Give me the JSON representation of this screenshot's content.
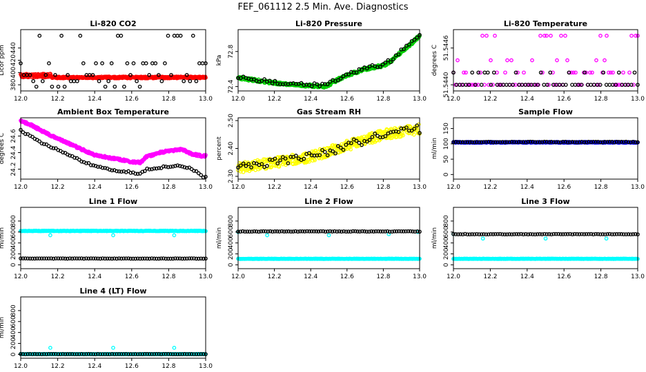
{
  "figure": {
    "title": "FEF_061112  2.5 Min. Ave. Diagnostics"
  },
  "chart_data": [
    {
      "type": "scatter",
      "title": "Li-820 CO2",
      "ylabel": "Licor ppm",
      "xlim": [
        12.0,
        13.0
      ],
      "ylim": [
        370,
        470
      ],
      "xticks": [
        "12.0",
        "12.2",
        "12.4",
        "12.6",
        "12.8",
        "13.0"
      ],
      "yticks": [
        "380",
        "400",
        "420",
        "440"
      ],
      "series": [
        {
          "name": "red",
          "color": "#ff0000",
          "model": "noisy",
          "y0": 392,
          "y1": 392,
          "amp": 1.5,
          "n": 500,
          "bump": [
            12.0,
            12.17,
            395
          ]
        },
        {
          "name": "black",
          "color": "#000000",
          "model": "levels",
          "levels": [
            377,
            386,
            396,
            415,
            460
          ],
          "n": 60
        }
      ]
    },
    {
      "type": "scatter",
      "title": "Li-820 Pressure",
      "ylabel": "kPa",
      "xlim": [
        12.0,
        13.0
      ],
      "ylim": [
        72.35,
        73.05
      ],
      "xticks": [
        "12.0",
        "12.2",
        "12.4",
        "12.6",
        "12.8",
        "13.0"
      ],
      "yticks": [
        "72.4",
        "72.8"
      ],
      "series": [
        {
          "name": "green",
          "color": "#00cc00",
          "model": "pts",
          "n": 400,
          "amp": 0.015,
          "pts": [
            [
              12.0,
              72.5
            ],
            [
              12.1,
              72.47
            ],
            [
              12.2,
              72.44
            ],
            [
              12.3,
              72.42
            ],
            [
              12.4,
              72.41
            ],
            [
              12.48,
              72.4
            ],
            [
              12.55,
              72.48
            ],
            [
              12.6,
              72.53
            ],
            [
              12.7,
              72.6
            ],
            [
              12.8,
              72.64
            ],
            [
              12.85,
              72.7
            ],
            [
              12.9,
              72.8
            ],
            [
              12.95,
              72.88
            ],
            [
              13.0,
              72.98
            ]
          ]
        },
        {
          "name": "black",
          "color": "#000000",
          "model": "pts",
          "n": 70,
          "amp": 0.02,
          "pts": [
            [
              12.0,
              72.51
            ],
            [
              12.1,
              72.48
            ],
            [
              12.2,
              72.45
            ],
            [
              12.3,
              72.43
            ],
            [
              12.4,
              72.42
            ],
            [
              12.48,
              72.41
            ],
            [
              12.55,
              72.49
            ],
            [
              12.6,
              72.54
            ],
            [
              12.7,
              72.61
            ],
            [
              12.8,
              72.65
            ],
            [
              12.85,
              72.71
            ],
            [
              12.9,
              72.81
            ],
            [
              12.95,
              72.89
            ],
            [
              13.0,
              72.99
            ]
          ]
        }
      ]
    },
    {
      "type": "scatter",
      "title": "Li-820 Temperature",
      "ylabel": "degrees C",
      "xlim": [
        12.0,
        13.0
      ],
      "ylim": [
        51.5439,
        51.5449
      ],
      "xticks": [
        "12.0",
        "12.2",
        "12.4",
        "12.6",
        "12.8",
        "13.0"
      ],
      "yticks": [
        "51.5440",
        "51.5446"
      ],
      "series": [
        {
          "name": "magenta",
          "color": "#ff00ff",
          "model": "levels",
          "levels": [
            51.544,
            51.544,
            51.544,
            51.544,
            51.5442,
            51.5442,
            51.5444,
            51.5448
          ],
          "n": 90
        },
        {
          "name": "black",
          "color": "#000000",
          "model": "levels",
          "levels": [
            51.544,
            51.544,
            51.544,
            51.544,
            51.5442
          ],
          "n": 60
        }
      ]
    },
    {
      "type": "scatter",
      "title": "Ambient Box Temperature",
      "ylabel": "degrees C",
      "xlim": [
        12.0,
        13.0
      ],
      "ylim": [
        24.08,
        24.82
      ],
      "xticks": [
        "12.0",
        "12.2",
        "12.4",
        "12.6",
        "12.8",
        "13.0"
      ],
      "yticks": [
        "24.2",
        "24.4",
        "24.6"
      ],
      "series": [
        {
          "name": "magenta",
          "color": "#ff00ff",
          "model": "pts",
          "n": 450,
          "amp": 0.012,
          "pts": [
            [
              12.0,
              24.78
            ],
            [
              12.05,
              24.74
            ],
            [
              12.1,
              24.68
            ],
            [
              12.15,
              24.62
            ],
            [
              12.2,
              24.57
            ],
            [
              12.3,
              24.47
            ],
            [
              12.35,
              24.42
            ],
            [
              12.4,
              24.37
            ],
            [
              12.5,
              24.33
            ],
            [
              12.6,
              24.29
            ],
            [
              12.65,
              24.28
            ],
            [
              12.68,
              24.35
            ],
            [
              12.75,
              24.4
            ],
            [
              12.8,
              24.42
            ],
            [
              12.87,
              24.44
            ],
            [
              12.93,
              24.38
            ],
            [
              12.98,
              24.36
            ]
          ]
        },
        {
          "name": "black",
          "color": "#000000",
          "model": "pts",
          "n": 80,
          "amp": 0.01,
          "pts": [
            [
              12.0,
              24.67
            ],
            [
              12.05,
              24.6
            ],
            [
              12.1,
              24.53
            ],
            [
              12.15,
              24.48
            ],
            [
              12.2,
              24.44
            ],
            [
              12.3,
              24.33
            ],
            [
              12.35,
              24.28
            ],
            [
              12.4,
              24.24
            ],
            [
              12.5,
              24.19
            ],
            [
              12.6,
              24.16
            ],
            [
              12.65,
              24.15
            ],
            [
              12.68,
              24.2
            ],
            [
              12.75,
              24.22
            ],
            [
              12.8,
              24.23
            ],
            [
              12.87,
              24.24
            ],
            [
              12.93,
              24.2
            ],
            [
              12.99,
              24.1
            ]
          ]
        }
      ]
    },
    {
      "type": "scatter",
      "title": "Gas Stream RH",
      "ylabel": "percent",
      "xlim": [
        12.0,
        13.0
      ],
      "ylim": [
        2.29,
        2.51
      ],
      "xticks": [
        "12.0",
        "12.2",
        "12.4",
        "12.6",
        "12.8",
        "13.0"
      ],
      "yticks": [
        "2.30",
        "2.40",
        "2.50"
      ],
      "series": [
        {
          "name": "yellow",
          "color": "#ffff00",
          "model": "pts",
          "n": 420,
          "amp": 0.018,
          "pts": [
            [
              12.0,
              2.33
            ],
            [
              12.2,
              2.35
            ],
            [
              12.4,
              2.37
            ],
            [
              12.6,
              2.41
            ],
            [
              12.8,
              2.45
            ],
            [
              13.0,
              2.47
            ]
          ]
        },
        {
          "name": "black",
          "color": "#000000",
          "model": "pts",
          "n": 70,
          "amp": 0.015,
          "pts": [
            [
              12.0,
              2.33
            ],
            [
              12.2,
              2.35
            ],
            [
              12.4,
              2.37
            ],
            [
              12.6,
              2.41
            ],
            [
              12.8,
              2.45
            ],
            [
              13.0,
              2.47
            ]
          ]
        }
      ]
    },
    {
      "type": "scatter",
      "title": "Sample Flow",
      "ylabel": "ml/min",
      "xlim": [
        12.0,
        13.0
      ],
      "ylim": [
        -15,
        185
      ],
      "xticks": [
        "12.0",
        "12.2",
        "12.4",
        "12.6",
        "12.8",
        "13.0"
      ],
      "yticks": [
        "0",
        "50",
        "100",
        "150"
      ],
      "series": [
        {
          "name": "blue",
          "color": "#0000ff",
          "model": "noisy",
          "y0": 105,
          "y1": 105,
          "amp": 1.5,
          "n": 420
        },
        {
          "name": "black",
          "color": "#000000",
          "model": "noisy",
          "y0": 106,
          "y1": 106,
          "amp": 1,
          "n": 80
        }
      ]
    },
    {
      "type": "scatter",
      "title": "Line 1 Flow",
      "ylabel": "ml/min",
      "xlim": [
        12.0,
        13.0
      ],
      "ylim": [
        -70,
        1050
      ],
      "xticks": [
        "12.0",
        "12.2",
        "12.4",
        "12.6",
        "12.8",
        "13.0"
      ],
      "yticks": [
        "0",
        "200",
        "400",
        "600",
        "800"
      ],
      "series": [
        {
          "name": "cyan",
          "color": "#00ffff",
          "model": "noisy",
          "y0": 620,
          "y1": 620,
          "amp": 5,
          "n": 400,
          "dips": [
            [
              12.16,
              540
            ],
            [
              12.5,
              540
            ],
            [
              12.83,
              540
            ]
          ]
        },
        {
          "name": "black",
          "color": "#000000",
          "model": "noisy",
          "y0": 115,
          "y1": 115,
          "amp": 3,
          "n": 80
        }
      ]
    },
    {
      "type": "scatter",
      "title": "Line 2 Flow",
      "ylabel": "ml/min",
      "xlim": [
        12.0,
        13.0
      ],
      "ylim": [
        -70,
        1050
      ],
      "xticks": [
        "12.0",
        "12.2",
        "12.4",
        "12.6",
        "12.8",
        "13.0"
      ],
      "yticks": [
        "0",
        "200",
        "400",
        "600",
        "800"
      ],
      "series": [
        {
          "name": "cyan",
          "color": "#00ffff",
          "model": "noisy",
          "y0": 110,
          "y1": 110,
          "amp": 3,
          "n": 400,
          "extra": [
            [
              12.0,
              600
            ],
            [
              12.16,
              540
            ],
            [
              12.5,
              540
            ],
            [
              12.83,
              560
            ],
            [
              12.99,
              600
            ]
          ]
        },
        {
          "name": "black",
          "color": "#000000",
          "model": "noisy",
          "y0": 610,
          "y1": 610,
          "amp": 4,
          "n": 80
        }
      ]
    },
    {
      "type": "scatter",
      "title": "Line 3 Flow",
      "ylabel": "ml/min",
      "xlim": [
        12.0,
        13.0
      ],
      "ylim": [
        -70,
        1050
      ],
      "xticks": [
        "12.0",
        "12.2",
        "12.4",
        "12.6",
        "12.8",
        "13.0"
      ],
      "yticks": [
        "0",
        "200",
        "400",
        "600",
        "800"
      ],
      "series": [
        {
          "name": "cyan",
          "color": "#00ffff",
          "model": "noisy",
          "y0": 110,
          "y1": 110,
          "amp": 3,
          "n": 400,
          "extra": [
            [
              12.0,
              560
            ],
            [
              12.16,
              480
            ],
            [
              12.5,
              480
            ],
            [
              12.83,
              480
            ]
          ]
        },
        {
          "name": "black",
          "color": "#000000",
          "model": "noisy",
          "y0": 560,
          "y1": 560,
          "amp": 4,
          "n": 80
        }
      ]
    },
    {
      "type": "scatter",
      "title": "Line 4 (LT) Flow",
      "ylabel": "ml/min",
      "xlim": [
        12.0,
        13.0
      ],
      "ylim": [
        -70,
        1050
      ],
      "xticks": [
        "12.0",
        "12.2",
        "12.4",
        "12.6",
        "12.8",
        "13.0"
      ],
      "yticks": [
        "0",
        "200",
        "400",
        "600",
        "800"
      ],
      "series": [
        {
          "name": "cyan",
          "color": "#00ffff",
          "model": "noisy",
          "y0": 5,
          "y1": 5,
          "amp": 2,
          "n": 400,
          "extra": [
            [
              12.16,
              120
            ],
            [
              12.5,
              120
            ],
            [
              12.83,
              120
            ]
          ]
        },
        {
          "name": "black",
          "color": "#000000",
          "model": "noisy",
          "y0": 5,
          "y1": 5,
          "amp": 2,
          "n": 80
        }
      ]
    }
  ]
}
